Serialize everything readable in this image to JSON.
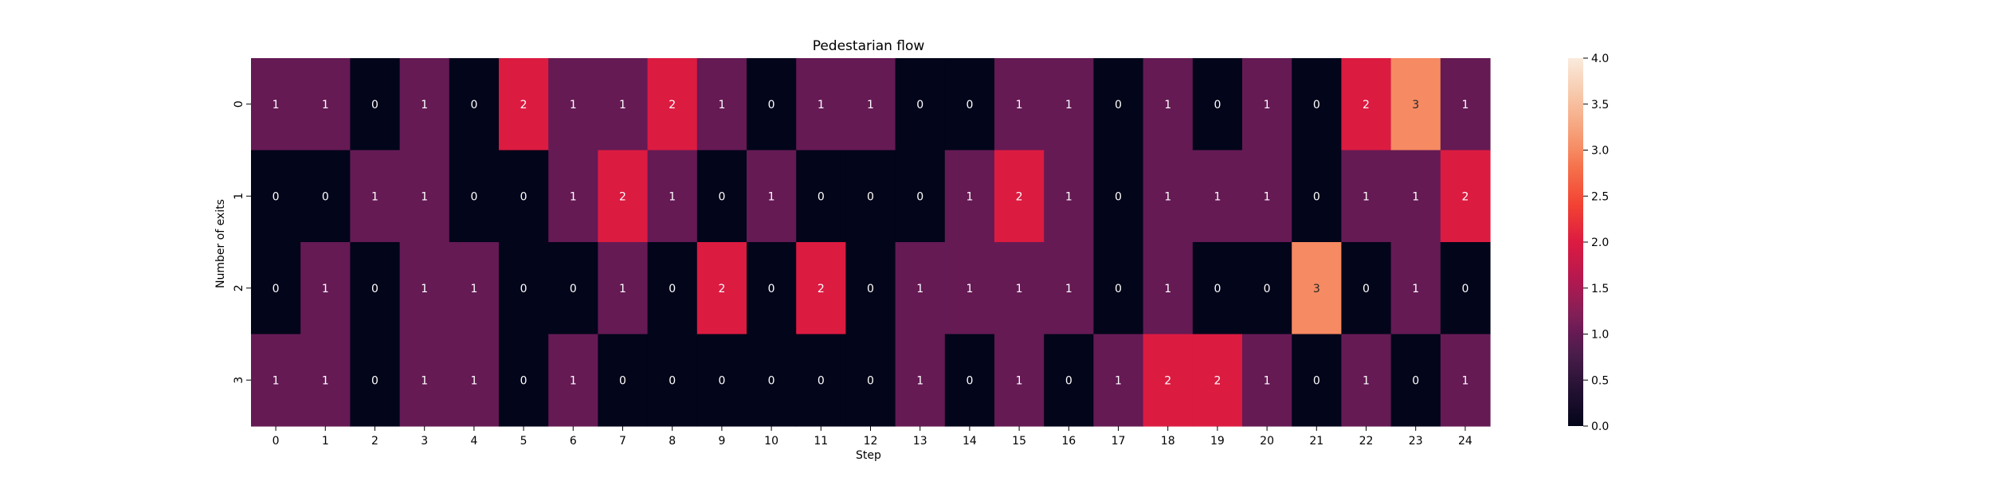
{
  "chart_data": {
    "type": "heatmap",
    "title": "Pedestarian flow",
    "xlabel": "Step",
    "ylabel": "Number of exits",
    "x_ticks": [
      "0",
      "1",
      "2",
      "3",
      "4",
      "5",
      "6",
      "7",
      "8",
      "9",
      "10",
      "11",
      "12",
      "13",
      "14",
      "15",
      "16",
      "17",
      "18",
      "19",
      "20",
      "21",
      "22",
      "23",
      "24"
    ],
    "y_ticks": [
      "0",
      "1",
      "2",
      "3"
    ],
    "values": [
      [
        1,
        1,
        0,
        1,
        0,
        2,
        1,
        1,
        2,
        1,
        0,
        1,
        1,
        0,
        0,
        1,
        1,
        0,
        1,
        0,
        1,
        0,
        2,
        3,
        1
      ],
      [
        0,
        0,
        1,
        1,
        0,
        0,
        1,
        2,
        1,
        0,
        1,
        0,
        0,
        0,
        1,
        2,
        1,
        0,
        1,
        1,
        1,
        0,
        1,
        1,
        2
      ],
      [
        0,
        1,
        0,
        1,
        1,
        0,
        0,
        1,
        0,
        2,
        0,
        2,
        0,
        1,
        1,
        1,
        1,
        0,
        1,
        0,
        0,
        3,
        0,
        1,
        0
      ],
      [
        1,
        1,
        0,
        1,
        1,
        0,
        1,
        0,
        0,
        0,
        0,
        0,
        0,
        1,
        0,
        1,
        0,
        1,
        2,
        2,
        1,
        0,
        1,
        0,
        1
      ]
    ],
    "vmin": 0,
    "vmax": 4,
    "colorbar_ticks": [
      "0.0",
      "0.5",
      "1.0",
      "1.5",
      "2.0",
      "2.5",
      "3.0",
      "3.5",
      "4.0"
    ],
    "colormap": "rocket",
    "annotations": true,
    "grid": false
  }
}
